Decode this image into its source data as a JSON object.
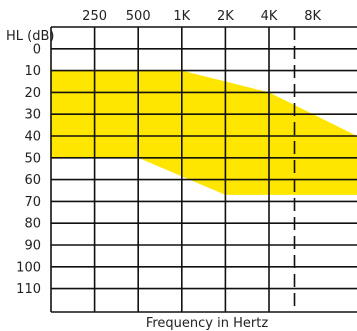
{
  "chart_data": {
    "type": "area",
    "ylabel": "HL (dB)",
    "xlabel": "Frequency in Hertz",
    "x_ticks": [
      "250",
      "500",
      "1K",
      "2K",
      "4K",
      "8K"
    ],
    "x_tick_hz": [
      250,
      500,
      1000,
      2000,
      4000,
      8000
    ],
    "y_ticks": [
      "0",
      "10",
      "20",
      "30",
      "40",
      "50",
      "60",
      "70",
      "80",
      "90",
      "100",
      "110"
    ],
    "y_tick_values": [
      0,
      10,
      20,
      30,
      40,
      50,
      60,
      70,
      80,
      90,
      100,
      110
    ],
    "y_inverted": true,
    "grid": true,
    "dashed_gridline_hz": 6000,
    "series": [
      {
        "fill": "#ffe600",
        "upper_bound_db": [
          {
            "hz": 125,
            "db": 10
          },
          {
            "hz": 1000,
            "db": 10
          },
          {
            "hz": 4000,
            "db": 20
          },
          {
            "hz": 8000,
            "db": 40
          }
        ],
        "lower_bound_db": [
          {
            "hz": 125,
            "db": 50
          },
          {
            "hz": 500,
            "db": 50
          },
          {
            "hz": 2000,
            "db": 67
          },
          {
            "hz": 8000,
            "db": 67
          }
        ]
      }
    ]
  }
}
